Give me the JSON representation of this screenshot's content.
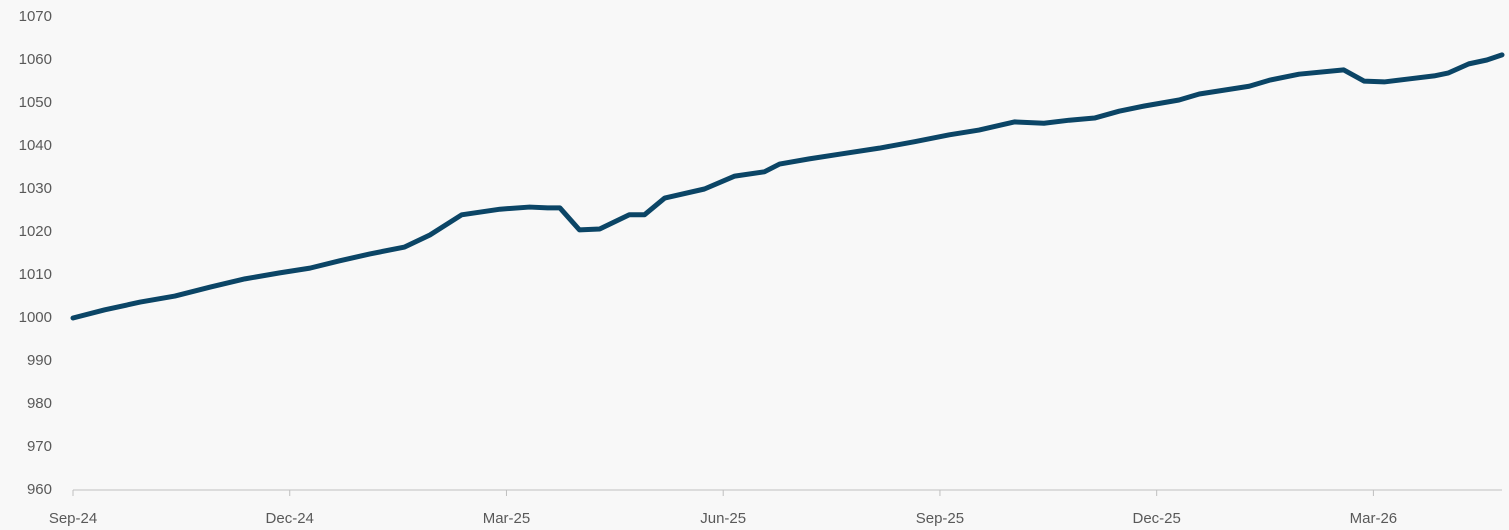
{
  "chart_data": {
    "type": "line",
    "x": [
      0,
      0.44,
      0.93,
      1.41,
      1.9,
      2.38,
      2.86,
      3.28,
      3.69,
      4.11,
      4.59,
      4.94,
      5.38,
      5.91,
      6.32,
      6.57,
      6.74,
      7.01,
      7.29,
      7.7,
      7.91,
      8.19,
      8.74,
      9.16,
      9.57,
      9.78,
      10.19,
      10.61,
      11.16,
      11.65,
      12.13,
      12.54,
      13.03,
      13.44,
      13.79,
      14.14,
      14.48,
      14.83,
      15.31,
      15.59,
      16.28,
      16.56,
      16.97,
      17.59,
      17.87,
      18.15,
      18.49,
      18.84,
      19.04,
      19.32,
      19.57,
      19.78
    ],
    "series": [
      {
        "color": "#0b4566",
        "values": [
          1000,
          1001.9,
          1003.7,
          1005.1,
          1007.2,
          1009.1,
          1010.5,
          1011.6,
          1013.3,
          1014.9,
          1016.5,
          1019.3,
          1024,
          1025.3,
          1025.8,
          1025.6,
          1025.6,
          1020.5,
          1020.7,
          1024,
          1024,
          1027.9,
          1030,
          1033,
          1034,
          1035.8,
          1037,
          1038.1,
          1039.5,
          1041,
          1042.6,
          1043.7,
          1045.6,
          1045.3,
          1046,
          1046.5,
          1048.1,
          1049.3,
          1050.7,
          1052.1,
          1053.9,
          1055.3,
          1056.7,
          1057.7,
          1055.1,
          1054.9,
          1055.6,
          1056.3,
          1057,
          1059.1,
          1060,
          1061.2
        ]
      }
    ],
    "xlim": [
      0,
      19.78
    ],
    "xticks": [
      {
        "value": 0,
        "label": "Sep-24"
      },
      {
        "value": 3,
        "label": "Dec-24"
      },
      {
        "value": 6,
        "label": "Mar-25"
      },
      {
        "value": 9,
        "label": "Jun-25"
      },
      {
        "value": 12,
        "label": "Sep-25"
      },
      {
        "value": 15,
        "label": "Dec-25"
      },
      {
        "value": 18,
        "label": "Mar-26"
      }
    ],
    "ylim": [
      960,
      1070
    ],
    "yticks": [
      960,
      970,
      980,
      990,
      1000,
      1010,
      1020,
      1030,
      1040,
      1050,
      1060,
      1070
    ],
    "grid": false
  }
}
